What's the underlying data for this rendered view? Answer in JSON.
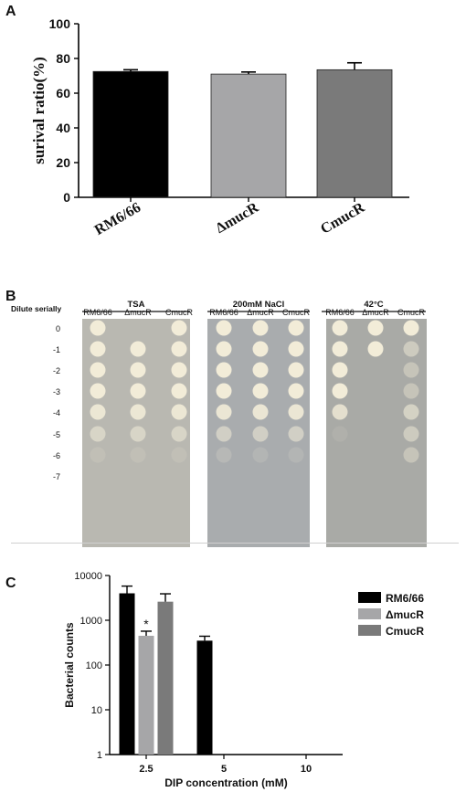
{
  "panels": {
    "a": "A",
    "b": "B",
    "c": "C"
  },
  "chart_data": [
    {
      "type": "bar",
      "categories": [
        "RM6/66",
        "ΔmucR",
        "CmucR"
      ],
      "values": [
        72.5,
        71,
        73.5
      ],
      "errors": [
        1,
        1.2,
        4
      ],
      "colors": [
        "#000000",
        "#a6a6a8",
        "#7a7a7a"
      ],
      "title": "",
      "xlabel": "",
      "ylabel": "surival ratio(%)",
      "ylim": [
        0,
        100
      ],
      "yticks": [
        0,
        20,
        40,
        60,
        80,
        100
      ]
    },
    {
      "type": "bar",
      "categories": [
        "2.5",
        "5",
        "10"
      ],
      "series": [
        {
          "name": "RM6/66",
          "values": [
            4000,
            350,
            null
          ],
          "errors": [
            1800,
            90,
            null
          ]
        },
        {
          "name": "ΔmucR",
          "values": [
            450,
            null,
            null
          ],
          "errors": [
            120,
            null,
            null
          ]
        },
        {
          "name": "CmucR",
          "values": [
            2600,
            null,
            null
          ],
          "errors": [
            1300,
            null,
            null
          ]
        }
      ],
      "colors": [
        "#000000",
        "#a6a6a8",
        "#7a7a7a"
      ],
      "annotations": [
        {
          "text": "*",
          "series": "ΔmucR",
          "category": "2.5"
        }
      ],
      "xlabel": "DIP concentration (mM)",
      "ylabel": "Bacterial counts",
      "yscale": "log",
      "ylim": [
        1,
        10000
      ],
      "yticks": [
        "1",
        "10",
        "100",
        "1000",
        "10000"
      ],
      "legend": "right"
    }
  ],
  "plates": {
    "row_header": "Dilute serially",
    "dilutions": [
      "0",
      "-1",
      "-2",
      "-3",
      "-4",
      "-5",
      "-6",
      "-7"
    ],
    "groups": [
      {
        "title": "TSA",
        "strains": [
          "RM6/66",
          "ΔmucR",
          "CmucR"
        ]
      },
      {
        "title": "200mM NaCl",
        "strains": [
          "RM6/66",
          "ΔmucR",
          "CmucR"
        ]
      },
      {
        "title": "42°C",
        "strains": [
          "RM6/66",
          "ΔmucR",
          "CmucR"
        ]
      }
    ]
  }
}
